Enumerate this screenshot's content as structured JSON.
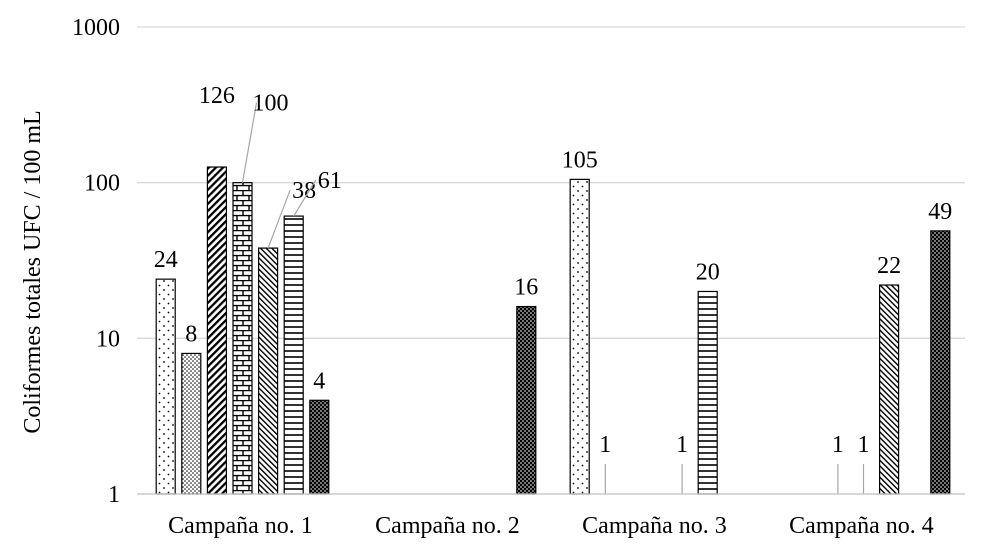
{
  "chart_data": {
    "type": "bar",
    "scale": "log",
    "ylabel": "Coliformes totales UFC / 100 mL",
    "ylim": [
      1,
      1000
    ],
    "yticks": [
      "1",
      "10",
      "100",
      "1000"
    ],
    "grid": true,
    "categories": [
      "Campaña no. 1",
      "Campaña no. 2",
      "Campaña no. 3",
      "Campaña no. 4"
    ],
    "series_count": 7,
    "series_patterns": [
      "sparse-dots",
      "dense-dots",
      "wide-diagonal",
      "brick",
      "narrow-diagonal",
      "horizontal-lines",
      "grid-checker"
    ],
    "values": [
      [
        24,
        8,
        126,
        100,
        38,
        61,
        4
      ],
      [
        null,
        null,
        null,
        null,
        null,
        null,
        16
      ],
      [
        105,
        1,
        null,
        null,
        1,
        20,
        null
      ],
      [
        null,
        null,
        1,
        1,
        22,
        null,
        49
      ]
    ],
    "data_labels": [
      [
        "24",
        "8",
        "126",
        "100",
        "38",
        "61",
        "4"
      ],
      [
        "",
        "",
        "",
        "",
        "",
        "",
        "16"
      ],
      [
        "105",
        "1",
        "",
        "",
        "1",
        "20",
        ""
      ],
      [
        "",
        "",
        "1",
        "1",
        "22",
        "",
        "49"
      ]
    ]
  }
}
